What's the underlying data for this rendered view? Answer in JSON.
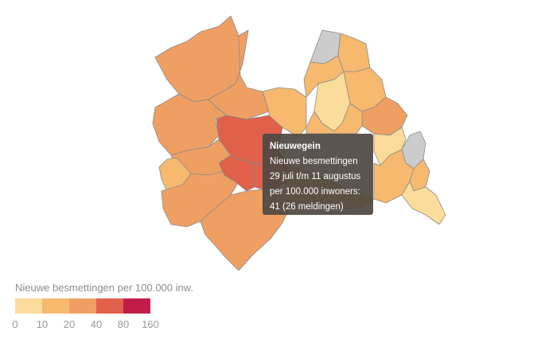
{
  "colors": {
    "scale": [
      "#fcdc9a",
      "#f6b96e",
      "#f09f62",
      "#e06049",
      "#c11d49"
    ],
    "no_data": "#cccccc",
    "stroke": "#8a8a8a"
  },
  "map": {
    "municipalities": [
      {
        "id": "nw-a",
        "class": 2
      },
      {
        "id": "nw-b",
        "class": 2
      },
      {
        "id": "west-a",
        "class": 2
      },
      {
        "id": "west-b",
        "class": 2
      },
      {
        "id": "west-c",
        "class": 1
      },
      {
        "id": "west-d",
        "class": 2
      },
      {
        "id": "sw",
        "class": 2
      },
      {
        "id": "south",
        "class": 1
      },
      {
        "id": "center",
        "class": 3
      },
      {
        "id": "center-w",
        "class": 3
      },
      {
        "id": "nieuwegein",
        "name": "Nieuwegein",
        "class": 3
      },
      {
        "id": "north-mid",
        "class": 1
      },
      {
        "id": "ne-grey",
        "class": null
      },
      {
        "id": "ne-a",
        "class": 1
      },
      {
        "id": "ne-b",
        "class": 1
      },
      {
        "id": "ne-c",
        "class": 0
      },
      {
        "id": "ne-d",
        "class": 1
      },
      {
        "id": "east-a",
        "class": 2
      },
      {
        "id": "east-b",
        "class": 1
      },
      {
        "id": "east-c",
        "class": 0
      },
      {
        "id": "east-grey",
        "class": null
      },
      {
        "id": "se-a",
        "class": 1
      },
      {
        "id": "se-b",
        "class": 1
      },
      {
        "id": "se-c",
        "class": 0
      },
      {
        "id": "mid-south",
        "class": 1
      }
    ]
  },
  "tooltip": {
    "title": "Nieuwegein",
    "line1": "Nieuwe besmettingen",
    "line2": "29 juli t/m 11 augustus",
    "line3": "per 100.000 inwoners:",
    "line4": "41 (26 meldingen)"
  },
  "legend": {
    "title": "Nieuwe besmettingen per 100.000 inw.",
    "ticks": [
      "0",
      "10",
      "20",
      "40",
      "80",
      "160"
    ]
  }
}
